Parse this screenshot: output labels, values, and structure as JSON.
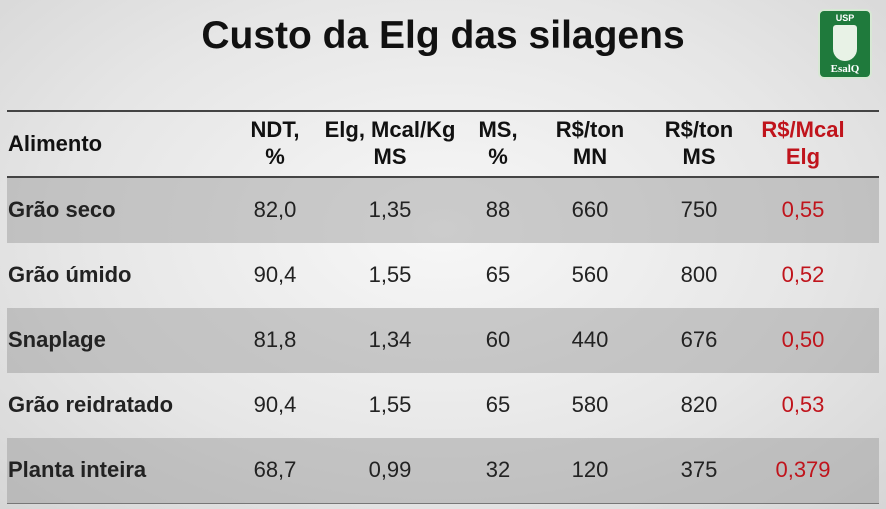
{
  "header": {
    "title": "Custo da Elg das silagens",
    "logo": {
      "top": "USP",
      "bottom": "EsalQ"
    }
  },
  "table": {
    "columns": [
      [
        "Alimento"
      ],
      [
        "NDT,",
        "%"
      ],
      [
        "Elg, Mcal/Kg",
        "MS"
      ],
      [
        "MS,",
        "%"
      ],
      [
        "R$/ton",
        "MN"
      ],
      [
        "R$/ton",
        "MS"
      ],
      [
        "R$/Mcal",
        "Elg"
      ]
    ],
    "rows": [
      [
        "Grão seco",
        "82,0",
        "1,35",
        "88",
        "660",
        "750",
        "0,55"
      ],
      [
        "Grão úmido",
        "90,4",
        "1,55",
        "65",
        "560",
        "800",
        "0,52"
      ],
      [
        "Snaplage",
        "81,8",
        "1,34",
        "60",
        "440",
        "676",
        "0,50"
      ],
      [
        "Grão reidratado",
        "90,4",
        "1,55",
        "65",
        "580",
        "820",
        "0,53"
      ],
      [
        "Planta inteira",
        "68,7",
        "0,99",
        "32",
        "120",
        "375",
        "0,379"
      ]
    ]
  }
}
